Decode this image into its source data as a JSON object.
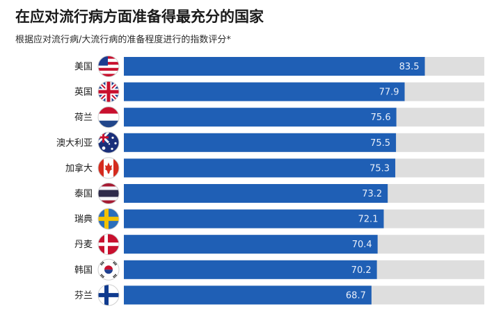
{
  "title": "在应对流行病方面准备得最充分的国家",
  "subtitle": "根据应对流行病/大流行病的准备程度进行的指数评分*",
  "colors": {
    "bar": "#1f5fb5",
    "track": "#dedede"
  },
  "chart_data": {
    "type": "bar",
    "orientation": "horizontal",
    "categories": [
      "美国",
      "英国",
      "荷兰",
      "澳大利亚",
      "加拿大",
      "泰国",
      "瑞典",
      "丹麦",
      "韩国",
      "芬兰"
    ],
    "flags": [
      "us-flag-icon",
      "uk-flag-icon",
      "netherlands-flag-icon",
      "australia-flag-icon",
      "canada-flag-icon",
      "thailand-flag-icon",
      "sweden-flag-icon",
      "denmark-flag-icon",
      "south-korea-flag-icon",
      "finland-flag-icon"
    ],
    "values": [
      83.5,
      77.9,
      75.6,
      75.5,
      75.3,
      73.2,
      72.1,
      70.4,
      70.2,
      68.7
    ],
    "xlim": [
      0,
      100
    ],
    "grid": false,
    "legend": "none"
  }
}
